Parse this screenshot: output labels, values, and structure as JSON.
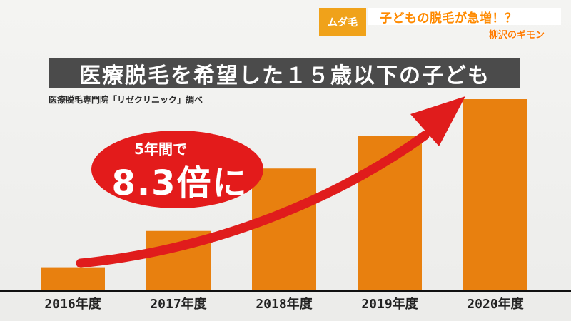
{
  "caption": {
    "tag": "ムダ毛",
    "main": "子どもの脱毛が急増！？",
    "sub": "柳沢のギモン"
  },
  "title": "医療脱毛を希望した１５歳以下の子ども",
  "source_note": "医療脱毛専門院「リゼクリニック」調べ",
  "callout": {
    "line1": "5年間で",
    "line2": "8.3倍に"
  },
  "colors": {
    "bar": "#e8800f",
    "arrow": "#e01c1c",
    "title_bg": "#4b4b4b",
    "caption_tag_bg": "#f0a21a",
    "caption_text": "#ff8a00"
  },
  "chart_data": {
    "type": "bar",
    "categories": [
      "2016年度",
      "2017年度",
      "2018年度",
      "2019年度",
      "2020年度"
    ],
    "values": [
      1,
      2.6,
      5.3,
      6.7,
      8.3
    ],
    "title": "医療脱毛を希望した１５歳以下の子ども",
    "xlabel": "",
    "ylabel": "",
    "ylim": [
      0,
      8.3
    ],
    "grid": false,
    "legend": "none",
    "annotation": "5年間で 8.3倍に"
  }
}
